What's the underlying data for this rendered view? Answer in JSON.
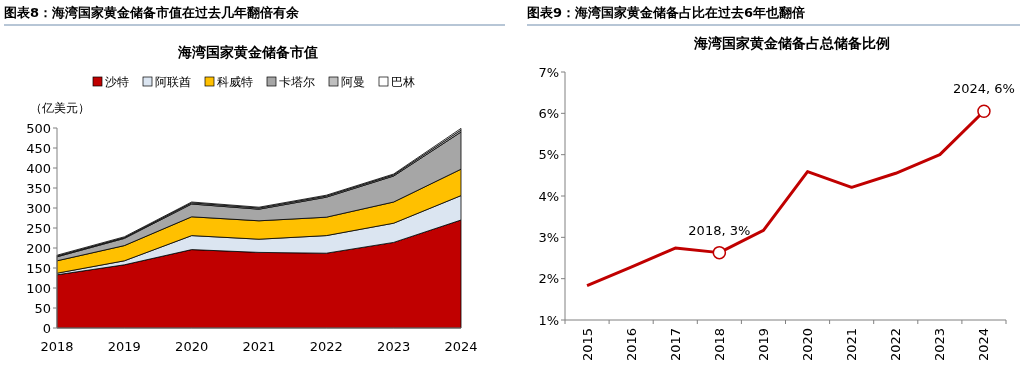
{
  "chart_data": [
    {
      "type": "area",
      "stacked": true,
      "title": "图表8：海湾国家黄金储备市值在过去几年翻倍有余",
      "subtitle": "海湾国家黄金储备市值",
      "ylabel": "（亿美元）",
      "categories": [
        "2018",
        "2019",
        "2020",
        "2021",
        "2022",
        "2023",
        "2024"
      ],
      "ylim": [
        0,
        500
      ],
      "yticks": [
        0,
        50,
        100,
        150,
        200,
        250,
        300,
        350,
        400,
        450,
        500
      ],
      "legend": "top",
      "series": [
        {
          "name": "沙特",
          "color": "#c00000",
          "values": [
            133,
            158,
            196,
            189,
            187,
            214,
            270
          ]
        },
        {
          "name": "阿联酋",
          "color": "#dbe5f1",
          "values": [
            4,
            10,
            35,
            33,
            44,
            48,
            61
          ]
        },
        {
          "name": "科威特",
          "color": "#ffc000",
          "values": [
            31,
            38,
            47,
            46,
            46,
            53,
            66
          ]
        },
        {
          "name": "卡塔尔",
          "color": "#a6a6a6",
          "values": [
            10,
            18,
            32,
            29,
            50,
            65,
            93
          ]
        },
        {
          "name": "阿曼",
          "color": "#bfbfbf",
          "values": [
            2,
            2,
            3,
            3,
            3,
            3,
            5
          ]
        },
        {
          "name": "巴林",
          "color": "#ffffff",
          "values": [
            2,
            2,
            2,
            2,
            2,
            2,
            4
          ]
        }
      ]
    },
    {
      "type": "line",
      "title": "图表9：海湾国家黄金储备占比在过去6年也翻倍",
      "subtitle": "海湾国家黄金储备占总储备比例",
      "categories": [
        "2015",
        "2016",
        "2017",
        "2018",
        "2019",
        "2020",
        "2021",
        "2022",
        "2023",
        "2024"
      ],
      "ylim": [
        1,
        7
      ],
      "yticks": [
        {
          "value": 1,
          "label": "1%"
        },
        {
          "value": 2,
          "label": "2%"
        },
        {
          "value": 3,
          "label": "3%"
        },
        {
          "value": 4,
          "label": "4%"
        },
        {
          "value": 5,
          "label": "5%"
        },
        {
          "value": 6,
          "label": "6%"
        },
        {
          "value": 7,
          "label": "7%"
        }
      ],
      "series": [
        {
          "color": "#c00000",
          "values": [
            1.83,
            2.28,
            2.74,
            2.63,
            3.17,
            4.59,
            4.21,
            4.55,
            5.0,
            6.05
          ]
        }
      ],
      "annotations": [
        {
          "text": "2018, 3%",
          "x": "2018",
          "y": 2.63
        },
        {
          "text": "2024, 6%",
          "x": "2024",
          "y": 6.05
        }
      ]
    }
  ]
}
